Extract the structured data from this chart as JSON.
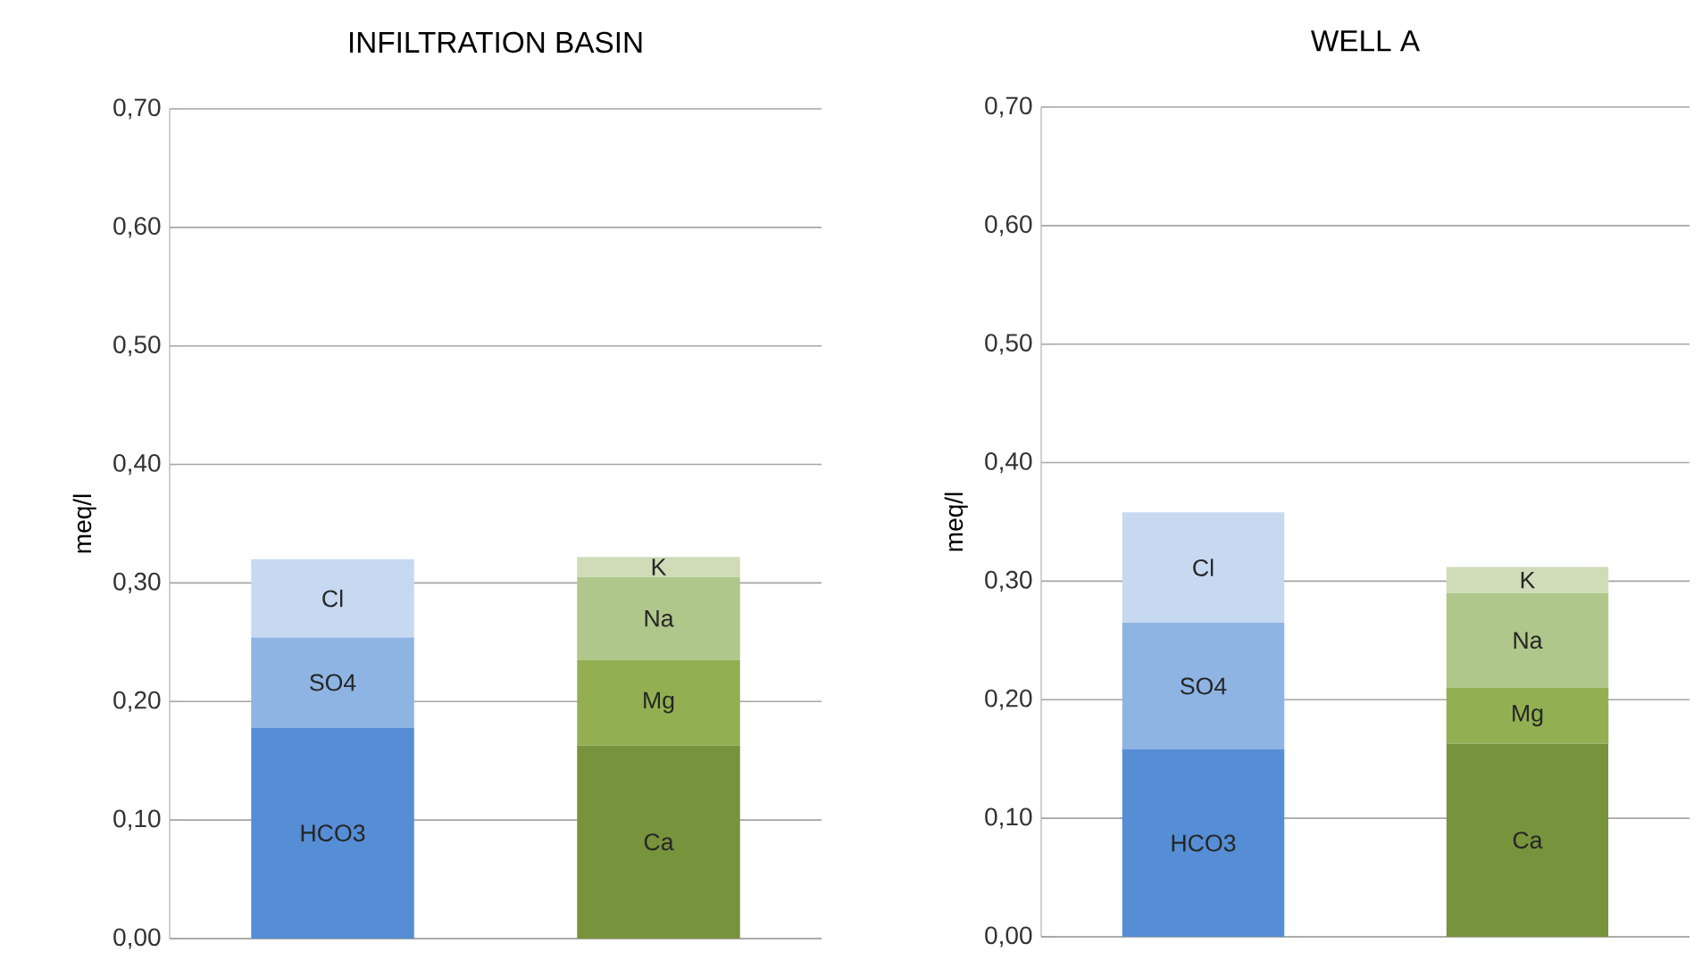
{
  "chart_data": [
    {
      "type": "bar",
      "title": "INFILTRATION BASIN",
      "ylabel": "meq/l",
      "categories": [
        null,
        null
      ],
      "stacked": true,
      "data_labels": false,
      "grid": "y",
      "tick_labels": "y",
      "ylim": [
        0,
        0.7
      ],
      "yticks": [
        {
          "value": 0,
          "label": "0,00"
        },
        {
          "value": 0.1,
          "label": "0,10"
        },
        {
          "value": 0.2,
          "label": "0,20"
        },
        {
          "value": 0.3,
          "label": "0,30"
        },
        {
          "value": 0.4,
          "label": "0,40"
        },
        {
          "value": 0.5,
          "label": "0,50"
        },
        {
          "value": 0.6,
          "label": "0,60"
        },
        {
          "value": 0.7,
          "label": "0,70"
        }
      ],
      "series": [
        {
          "name": "HCO3",
          "color": "#558ed5",
          "values": [
            0.178,
            null
          ]
        },
        {
          "name": "SO4",
          "color": "#8eb4e3",
          "values": [
            0.076,
            null
          ]
        },
        {
          "name": "Cl",
          "color": "#c6d9f1",
          "values": [
            0.066,
            null
          ]
        },
        {
          "name": "Ca",
          "color": "#77933c",
          "values": [
            null,
            0.163
          ]
        },
        {
          "name": "Mg",
          "color": "#92b052",
          "values": [
            null,
            0.072
          ]
        },
        {
          "name": "Na",
          "color": "#afc78a",
          "values": [
            null,
            0.07
          ]
        },
        {
          "name": "K",
          "color": "#d0dcb8",
          "values": [
            null,
            0.017
          ]
        }
      ]
    },
    {
      "type": "bar",
      "title": "WELL A",
      "ylabel": "meq/l",
      "categories": [
        null,
        null
      ],
      "stacked": true,
      "data_labels": false,
      "grid": "y",
      "tick_labels": "y",
      "ylim": [
        0,
        0.7
      ],
      "yticks": [
        {
          "value": 0,
          "label": "0,00"
        },
        {
          "value": 0.1,
          "label": "0,10"
        },
        {
          "value": 0.2,
          "label": "0,20"
        },
        {
          "value": 0.3,
          "label": "0,30"
        },
        {
          "value": 0.4,
          "label": "0,40"
        },
        {
          "value": 0.5,
          "label": "0,50"
        },
        {
          "value": 0.6,
          "label": "0,60"
        },
        {
          "value": 0.7,
          "label": "0,70"
        }
      ],
      "series": [
        {
          "name": "HCO3",
          "color": "#558ed5",
          "values": [
            0.158,
            null
          ]
        },
        {
          "name": "SO4",
          "color": "#8eb4e3",
          "values": [
            0.107,
            null
          ]
        },
        {
          "name": "Cl",
          "color": "#c6d9f1",
          "values": [
            0.093,
            null
          ]
        },
        {
          "name": "Ca",
          "color": "#77933c",
          "values": [
            null,
            0.163
          ]
        },
        {
          "name": "Mg",
          "color": "#92b052",
          "values": [
            null,
            0.047
          ]
        },
        {
          "name": "Na",
          "color": "#afc78a",
          "values": [
            null,
            0.08
          ]
        },
        {
          "name": "K",
          "color": "#d0dcb8",
          "values": [
            null,
            0.022
          ]
        }
      ]
    }
  ]
}
